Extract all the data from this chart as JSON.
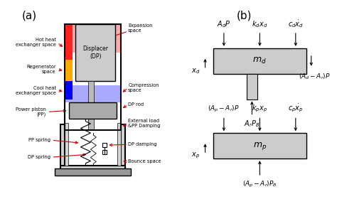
{
  "title_a": "(a)",
  "title_b": "(b)",
  "bg_color": "#ffffff",
  "labels_left": [
    "Hot heat\nexchanger space",
    "Regenerator\nspace",
    "Cool heat\nexchanger space",
    "Power piston\n(PP)",
    "PP spring",
    "DP spring"
  ],
  "labels_right_top": [
    "Expansion\nspace",
    "Compression\nspace",
    "DP rod",
    "External load\n&PP Damping",
    "DP damping",
    "Bounce space"
  ],
  "colors": {
    "hot": "#ff2222",
    "hot_bg": "#ffaaaa",
    "regen": "#ffaa00",
    "cool": "#0000ff",
    "cool_bg": "#aaaaff",
    "compress": "#aaccff",
    "displacer": "#cccccc",
    "piston": "#aaaaaa",
    "rod": "#bbbbbb",
    "spring": "#555555",
    "wall": "#222222",
    "base": "#999999",
    "arrow": "#cc0000",
    "box_diag": "#cccccc"
  }
}
